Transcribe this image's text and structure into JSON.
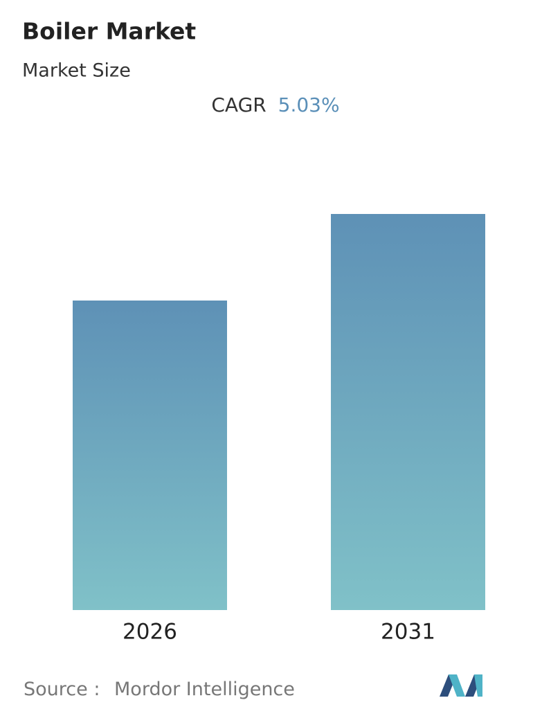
{
  "chart_data": {
    "type": "bar",
    "title": "Boiler Market",
    "subtitle": "Market Size",
    "cagr_label": "CAGR",
    "cagr": "5.03%",
    "categories": [
      "2026",
      "2031"
    ],
    "values": [
      447,
      572
    ],
    "ylim": [
      0,
      572
    ],
    "color_top": "#5e91b6",
    "color_bottom": "#80c1c8",
    "source_label": "Source :",
    "source": "Mordor Intelligence"
  }
}
